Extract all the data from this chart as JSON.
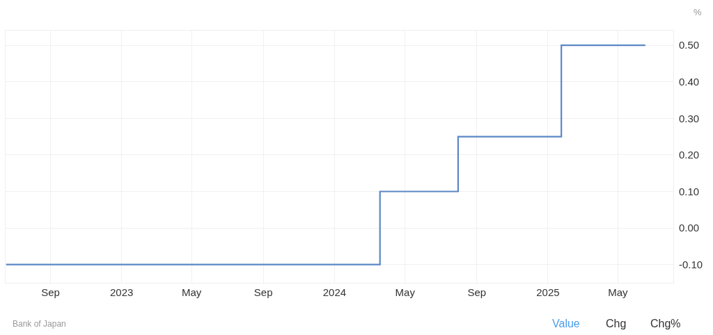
{
  "chart_data": {
    "type": "step",
    "ylabel": "%",
    "x": [
      "2022-06-17",
      "2024-03-19",
      "2024-07-31",
      "2025-01-24",
      "2025-06-17"
    ],
    "series": [
      {
        "color": "#5b87c5",
        "values": [
          -0.1,
          0.1,
          0.25,
          0.5,
          0.5
        ]
      }
    ],
    "xlim": [
      "2022-06-16",
      "2025-08-04"
    ],
    "xticks": [
      {
        "value": "2022-09-01",
        "label": "Sep"
      },
      {
        "value": "2023-01-01",
        "label": "2023"
      },
      {
        "value": "2023-05-01",
        "label": "May"
      },
      {
        "value": "2023-09-01",
        "label": "Sep"
      },
      {
        "value": "2024-01-01",
        "label": "2024"
      },
      {
        "value": "2024-05-01",
        "label": "May"
      },
      {
        "value": "2024-09-01",
        "label": "Sep"
      },
      {
        "value": "2025-01-01",
        "label": "2025"
      },
      {
        "value": "2025-05-01",
        "label": "May"
      }
    ],
    "ylim": [
      -0.15,
      0.54
    ],
    "yticks": [
      {
        "value": -0.1,
        "label": "-0.10"
      },
      {
        "value": 0.0,
        "label": "0.00"
      },
      {
        "value": 0.1,
        "label": "0.10"
      },
      {
        "value": 0.2,
        "label": "0.20"
      },
      {
        "value": 0.3,
        "label": "0.30"
      },
      {
        "value": 0.4,
        "label": "0.40"
      },
      {
        "value": 0.5,
        "label": "0.50"
      }
    ],
    "grid": true,
    "legend": false,
    "annotations": [
      "Bank of Japan",
      "Value",
      "Chg",
      "Chg%"
    ]
  }
}
